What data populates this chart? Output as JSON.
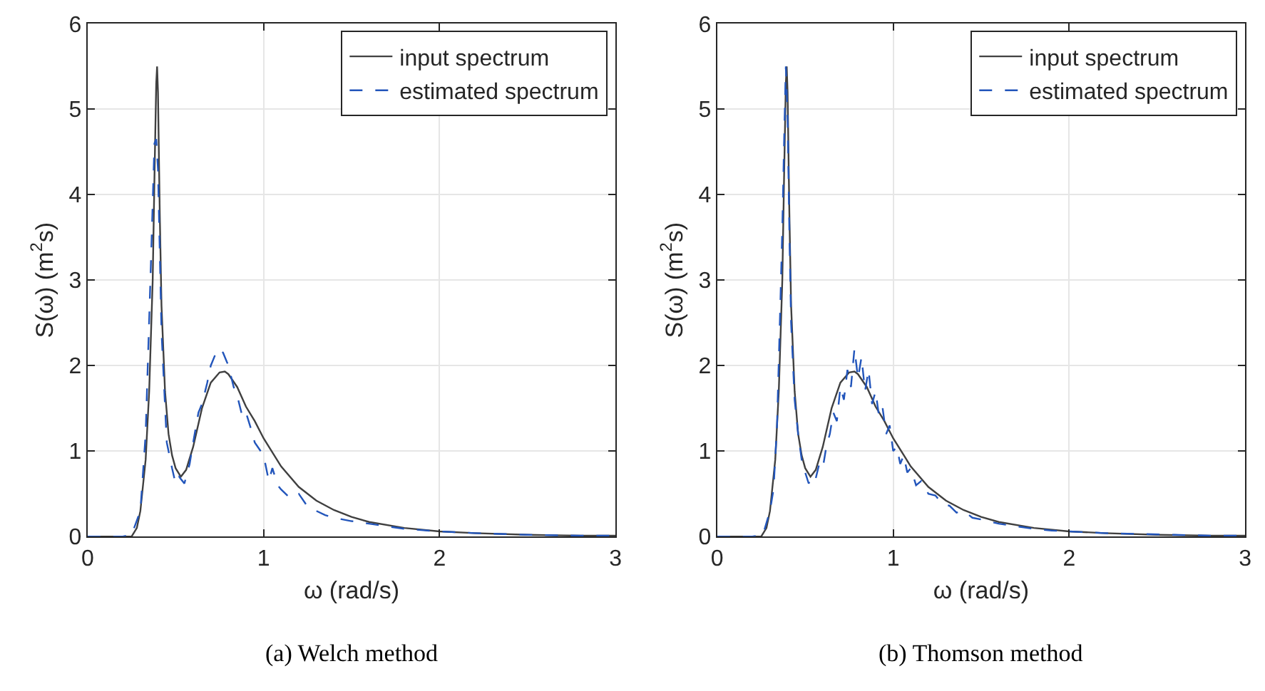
{
  "chart_data": [
    {
      "type": "line",
      "title": "(a) Welch method",
      "xlabel": "ω (rad/s)",
      "ylabel": "S(ω) (m$^{2}$s)",
      "xlim": [
        0,
        3
      ],
      "ylim": [
        0,
        6
      ],
      "xticks": [
        0,
        1,
        2,
        3
      ],
      "yticks": [
        0,
        1,
        2,
        3,
        4,
        5,
        6
      ],
      "grid": true,
      "legend": "top right",
      "series": [
        {
          "name": "input spectrum",
          "color": "#404040",
          "line_style": "solid",
          "x": [
            0,
            0.25,
            0.28,
            0.3,
            0.33,
            0.35,
            0.37,
            0.38,
            0.39,
            0.395,
            0.4,
            0.41,
            0.42,
            0.44,
            0.46,
            0.48,
            0.5,
            0.53,
            0.56,
            0.6,
            0.65,
            0.7,
            0.75,
            0.78,
            0.8,
            0.85,
            0.9,
            0.95,
            1.0,
            1.1,
            1.2,
            1.3,
            1.4,
            1.5,
            1.6,
            1.8,
            2.0,
            2.2,
            2.5,
            2.8,
            3.0
          ],
          "values": [
            0,
            0,
            0.1,
            0.3,
            0.9,
            1.7,
            3.0,
            4.2,
            5.3,
            5.5,
            5.2,
            3.8,
            2.7,
            1.7,
            1.2,
            0.95,
            0.8,
            0.7,
            0.78,
            1.05,
            1.5,
            1.8,
            1.92,
            1.93,
            1.9,
            1.75,
            1.52,
            1.35,
            1.15,
            0.82,
            0.58,
            0.42,
            0.31,
            0.23,
            0.17,
            0.1,
            0.06,
            0.04,
            0.02,
            0.01,
            0.01
          ]
        },
        {
          "name": "estimated spectrum",
          "color": "#2255bb",
          "line_style": "dashed",
          "x": [
            0,
            0.2,
            0.25,
            0.3,
            0.33,
            0.36,
            0.38,
            0.39,
            0.4,
            0.42,
            0.45,
            0.48,
            0.5,
            0.52,
            0.55,
            0.58,
            0.6,
            0.63,
            0.65,
            0.68,
            0.7,
            0.73,
            0.75,
            0.77,
            0.8,
            0.83,
            0.85,
            0.88,
            0.9,
            0.93,
            0.95,
            1.0,
            1.03,
            1.05,
            1.08,
            1.1,
            1.15,
            1.2,
            1.25,
            1.3,
            1.35,
            1.4,
            1.5,
            1.6,
            1.7,
            1.8,
            2.0,
            2.2,
            2.5,
            2.8,
            3.0
          ],
          "values": [
            0,
            0,
            0.02,
            0.3,
            1.2,
            3.2,
            4.6,
            4.65,
            4.3,
            2.4,
            1.1,
            0.8,
            0.62,
            0.7,
            0.62,
            0.85,
            1.1,
            1.45,
            1.55,
            1.8,
            2.0,
            2.15,
            2.2,
            2.15,
            2.0,
            1.75,
            1.65,
            1.4,
            1.45,
            1.25,
            1.1,
            0.95,
            0.65,
            0.8,
            0.6,
            0.55,
            0.45,
            0.5,
            0.35,
            0.3,
            0.25,
            0.22,
            0.18,
            0.15,
            0.12,
            0.09,
            0.06,
            0.04,
            0.02,
            0.01,
            0.01
          ]
        }
      ]
    },
    {
      "type": "line",
      "title": "(b) Thomson method",
      "xlabel": "ω (rad/s)",
      "ylabel": "S(ω) (m$^{2}$s)",
      "xlim": [
        0,
        3
      ],
      "ylim": [
        0,
        6
      ],
      "xticks": [
        0,
        1,
        2,
        3
      ],
      "yticks": [
        0,
        1,
        2,
        3,
        4,
        5,
        6
      ],
      "grid": true,
      "legend": "top right",
      "series": [
        {
          "name": "input spectrum",
          "color": "#404040",
          "line_style": "solid",
          "x": [
            0,
            0.25,
            0.28,
            0.3,
            0.33,
            0.35,
            0.37,
            0.38,
            0.39,
            0.395,
            0.4,
            0.41,
            0.42,
            0.44,
            0.46,
            0.48,
            0.5,
            0.53,
            0.56,
            0.6,
            0.65,
            0.7,
            0.75,
            0.78,
            0.8,
            0.85,
            0.9,
            0.95,
            1.0,
            1.1,
            1.2,
            1.3,
            1.4,
            1.5,
            1.6,
            1.8,
            2.0,
            2.2,
            2.5,
            2.8,
            3.0
          ],
          "values": [
            0,
            0,
            0.1,
            0.3,
            0.9,
            1.7,
            3.0,
            4.2,
            5.3,
            5.5,
            5.2,
            3.8,
            2.7,
            1.7,
            1.2,
            0.95,
            0.8,
            0.7,
            0.78,
            1.05,
            1.5,
            1.8,
            1.92,
            1.93,
            1.9,
            1.75,
            1.52,
            1.35,
            1.15,
            0.82,
            0.58,
            0.42,
            0.31,
            0.23,
            0.17,
            0.1,
            0.06,
            0.04,
            0.02,
            0.01,
            0.01
          ]
        },
        {
          "name": "estimated spectrum",
          "color": "#2255bb",
          "line_style": "dashed",
          "x": [
            0,
            0.2,
            0.26,
            0.3,
            0.32,
            0.34,
            0.36,
            0.37,
            0.38,
            0.39,
            0.4,
            0.41,
            0.42,
            0.44,
            0.46,
            0.48,
            0.5,
            0.52,
            0.54,
            0.56,
            0.58,
            0.6,
            0.62,
            0.64,
            0.66,
            0.68,
            0.7,
            0.72,
            0.74,
            0.76,
            0.78,
            0.8,
            0.82,
            0.84,
            0.86,
            0.88,
            0.9,
            0.92,
            0.94,
            0.96,
            0.98,
            1.0,
            1.02,
            1.04,
            1.06,
            1.08,
            1.1,
            1.13,
            1.16,
            1.2,
            1.24,
            1.28,
            1.32,
            1.36,
            1.4,
            1.45,
            1.5,
            1.6,
            1.7,
            1.8,
            1.9,
            2.0,
            2.2,
            2.4,
            2.6,
            2.8,
            3.0
          ],
          "values": [
            0,
            0,
            0.02,
            0.3,
            0.55,
            1.3,
            2.8,
            3.6,
            4.6,
            5.5,
            4.9,
            3.6,
            2.5,
            1.6,
            1.2,
            0.9,
            0.75,
            0.62,
            0.72,
            0.68,
            0.85,
            0.8,
            1.05,
            1.2,
            1.45,
            1.35,
            1.75,
            1.6,
            1.95,
            1.75,
            2.2,
            1.85,
            2.1,
            1.7,
            1.95,
            1.55,
            1.7,
            1.4,
            1.5,
            1.2,
            1.3,
            1.0,
            1.05,
            0.85,
            0.95,
            0.75,
            0.8,
            0.6,
            0.65,
            0.5,
            0.48,
            0.38,
            0.36,
            0.28,
            0.3,
            0.22,
            0.2,
            0.15,
            0.12,
            0.09,
            0.07,
            0.06,
            0.04,
            0.03,
            0.02,
            0.01,
            0.01
          ]
        }
      ]
    }
  ]
}
